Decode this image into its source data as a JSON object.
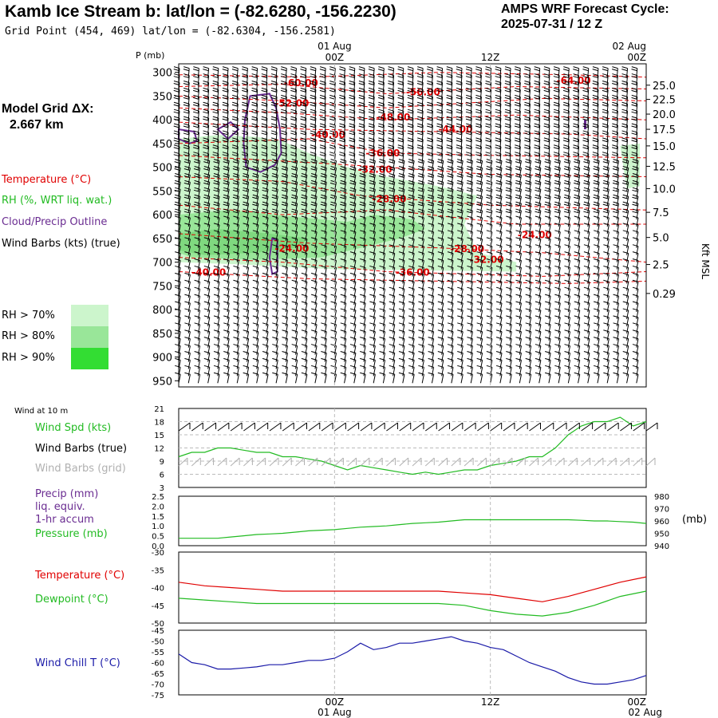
{
  "header": {
    "title": "Kamb Ice Stream b:  lat/lon = (-82.6280, -156.2230)",
    "grid_point": "Grid Point (454, 469) lat/lon = (-82.6304, -156.2581)",
    "cycle_label": "AMPS WRF Forecast Cycle:",
    "cycle_value": "2025-07-31 / 12  Z"
  },
  "left_panel": {
    "model_grid_label": "Model Grid ΔX:",
    "model_grid_value": "2.667 km",
    "legend_temperature": "Temperature (°C)",
    "legend_rh": "RH (%, WRT liq. wat.)",
    "legend_cloud": "Cloud/Precip Outline",
    "legend_wind": "Wind Barbs (kts) (true)",
    "rh_levels": [
      "RH > 70%",
      "RH > 80%",
      "RH > 90%"
    ]
  },
  "colors": {
    "temperature": "#e00000",
    "rh70": "#ccf5cc",
    "rh80": "#99e699",
    "rh90": "#33dd33",
    "cloud": "#6a2c91",
    "wind_speed": "#22bb22",
    "wind_grid": "#b0b0b0",
    "wind_chill": "#1a1aa8",
    "dewpoint": "#22bb22"
  },
  "time_axis": {
    "top_labels": [
      {
        "hour": 12,
        "line1": "01 Aug",
        "line2": "00Z"
      },
      {
        "hour": 24,
        "line1": "",
        "line2": "12Z"
      },
      {
        "hour": 36,
        "line1": "02 Aug",
        "line2": "00Z"
      }
    ],
    "bottom_labels": [
      {
        "hour": 12,
        "line1": "00Z",
        "line2": "01 Aug"
      },
      {
        "hour": 24,
        "line1": "12Z",
        "line2": ""
      },
      {
        "hour": 36,
        "line1": "00Z",
        "line2": "02 Aug"
      }
    ],
    "start_hour": 0,
    "end_hour": 36
  },
  "chart_data": [
    {
      "type": "heatmap",
      "panel": "cross-section",
      "ylabel": "P (mb)",
      "ylabel_right": "Kft MSL",
      "pressure_ticks": [
        300,
        350,
        400,
        450,
        500,
        550,
        600,
        650,
        700,
        750,
        800,
        850,
        900,
        950
      ],
      "height_ticks": [
        {
          "p": 327,
          "label": "25.0"
        },
        {
          "p": 357,
          "label": "22.5"
        },
        {
          "p": 388,
          "label": "20.0"
        },
        {
          "p": 420,
          "label": "17.5"
        },
        {
          "p": 455,
          "label": "15.0"
        },
        {
          "p": 498,
          "label": "12.5"
        },
        {
          "p": 545,
          "label": "10.0"
        },
        {
          "p": 595,
          "label": "7.5"
        },
        {
          "p": 648,
          "label": "5.0"
        },
        {
          "p": 705,
          "label": "2.5"
        },
        {
          "p": 766,
          "label": "0.29"
        }
      ],
      "ylim": [
        950,
        300
      ],
      "temperature_labels": [
        {
          "hour": 8.1,
          "p": 322,
          "text": "-60.00"
        },
        {
          "hour": 29.1,
          "p": 317,
          "text": "-64.00"
        },
        {
          "hour": 17.5,
          "p": 342,
          "text": "-56.00"
        },
        {
          "hour": 7.4,
          "p": 365,
          "text": "-52.00"
        },
        {
          "hour": 15.2,
          "p": 395,
          "text": "-48.00"
        },
        {
          "hour": 20.0,
          "p": 420,
          "text": "-44.00"
        },
        {
          "hour": 10.2,
          "p": 432,
          "text": "-40.00"
        },
        {
          "hour": 14.4,
          "p": 470,
          "text": "-36.00"
        },
        {
          "hour": 13.8,
          "p": 505,
          "text": "-32.00"
        },
        {
          "hour": 14.9,
          "p": 567,
          "text": "-28.00"
        },
        {
          "hour": 26.1,
          "p": 643,
          "text": "-24.00"
        },
        {
          "hour": 7.4,
          "p": 671,
          "text": "-24.00"
        },
        {
          "hour": 20.9,
          "p": 672,
          "text": "-28.00"
        },
        {
          "hour": 22.4,
          "p": 695,
          "text": "-32.00"
        },
        {
          "hour": 1.0,
          "p": 722,
          "text": "-40.00"
        },
        {
          "hour": 16.7,
          "p": 722,
          "text": "-36.00"
        }
      ]
    },
    {
      "type": "line",
      "panel": "wind",
      "title": "Wind at 10 m",
      "series_labels": [
        "Wind Spd (kts)",
        "Wind Barbs (true)",
        "Wind Barbs (grid)"
      ],
      "yticks": [
        3,
        6,
        9,
        12,
        15,
        18,
        21
      ],
      "ylim": [
        3,
        21
      ],
      "series": [
        {
          "name": "Wind Spd (kts)",
          "x": [
            0,
            1,
            2,
            3,
            4,
            5,
            6,
            7,
            8,
            9,
            10,
            11,
            12,
            13,
            14,
            15,
            16,
            17,
            18,
            19,
            20,
            21,
            22,
            23,
            24,
            25,
            26,
            27,
            28,
            29,
            30,
            31,
            32,
            33,
            34,
            35,
            36
          ],
          "values": [
            10,
            11,
            11,
            12,
            12,
            11.5,
            11,
            11,
            10,
            10,
            9.5,
            9,
            8,
            7,
            8,
            7.5,
            7,
            6.5,
            6,
            6.5,
            6,
            6.5,
            7,
            7,
            8,
            8.5,
            9,
            10,
            10,
            12,
            15,
            17,
            18,
            18,
            19,
            17,
            18
          ]
        }
      ]
    },
    {
      "type": "line",
      "panel": "precip-pressure",
      "series_labels": [
        "Precip (mm)",
        "liq. equiv.",
        "1-hr accum",
        "Pressure (mb)"
      ],
      "yticks_left": [
        "0.0",
        "0.5",
        "1.0",
        "1.5",
        "2.0",
        "2.5"
      ],
      "yticks_right": [
        "940",
        "950",
        "960",
        "970",
        "980"
      ],
      "ylabel_right": "(mb)",
      "ylim_left": [
        0,
        2.5
      ],
      "ylim_right": [
        940,
        980
      ],
      "series": [
        {
          "name": "Pressure (mb)",
          "x": [
            0,
            1,
            2,
            3,
            4,
            5,
            6,
            7,
            8,
            9,
            10,
            11,
            12,
            13,
            14,
            15,
            16,
            17,
            18,
            19,
            20,
            21,
            22,
            23,
            24,
            25,
            26,
            27,
            28,
            29,
            30,
            31,
            32,
            33,
            34,
            35,
            36
          ],
          "values": [
            946,
            946,
            946,
            946,
            947,
            948,
            949,
            949.5,
            950,
            951,
            952,
            952.5,
            953,
            954,
            955,
            955.5,
            956,
            957,
            958,
            958.5,
            959,
            960,
            961,
            961,
            961,
            961,
            961,
            961,
            961,
            961,
            961,
            960.5,
            960,
            960,
            959.5,
            959,
            958
          ]
        }
      ]
    },
    {
      "type": "line",
      "panel": "temperature",
      "yticks": [
        -50,
        -45,
        -40,
        -35,
        -30
      ],
      "ylim": [
        -50,
        -30
      ],
      "series": [
        {
          "name": "Temperature (°C)",
          "x": [
            0,
            2,
            4,
            6,
            8,
            10,
            12,
            14,
            16,
            18,
            20,
            22,
            24,
            26,
            28,
            30,
            32,
            34,
            36
          ],
          "values": [
            -38.5,
            -39.5,
            -40,
            -40.5,
            -41,
            -41,
            -41,
            -41,
            -41,
            -41,
            -41,
            -41.5,
            -42,
            -43,
            -44,
            -42.5,
            -40.5,
            -38.5,
            -37
          ]
        },
        {
          "name": "Dewpoint (°C)",
          "x": [
            0,
            2,
            4,
            6,
            8,
            10,
            12,
            14,
            16,
            18,
            20,
            22,
            24,
            26,
            28,
            30,
            32,
            34,
            36
          ],
          "values": [
            -43,
            -43.5,
            -44,
            -44.5,
            -44.5,
            -44.5,
            -44.5,
            -44.5,
            -44.5,
            -44.5,
            -44.5,
            -45,
            -46.5,
            -47.5,
            -48,
            -47,
            -45,
            -42.5,
            -41
          ]
        }
      ]
    },
    {
      "type": "line",
      "panel": "wind-chill",
      "yticks": [
        -75,
        -70,
        -65,
        -60,
        -55,
        -50,
        -45
      ],
      "ylim": [
        -75,
        -45
      ],
      "series": [
        {
          "name": "Wind Chill T (°C)",
          "x": [
            0,
            1,
            2,
            3,
            4,
            5,
            6,
            7,
            8,
            9,
            10,
            11,
            12,
            13,
            14,
            15,
            16,
            17,
            18,
            19,
            20,
            21,
            22,
            23,
            24,
            25,
            26,
            27,
            28,
            29,
            30,
            31,
            32,
            33,
            34,
            35,
            36
          ],
          "values": [
            -56,
            -60,
            -61,
            -63,
            -63,
            -62.5,
            -62,
            -61,
            -61,
            -60,
            -59,
            -59,
            -58,
            -55,
            -51,
            -54,
            -53,
            -51,
            -51,
            -50,
            -49,
            -48,
            -50,
            -51,
            -53,
            -54,
            -57,
            -60,
            -62,
            -64,
            -67,
            -69,
            -70,
            -70,
            -69,
            -68,
            -66
          ]
        }
      ]
    }
  ]
}
